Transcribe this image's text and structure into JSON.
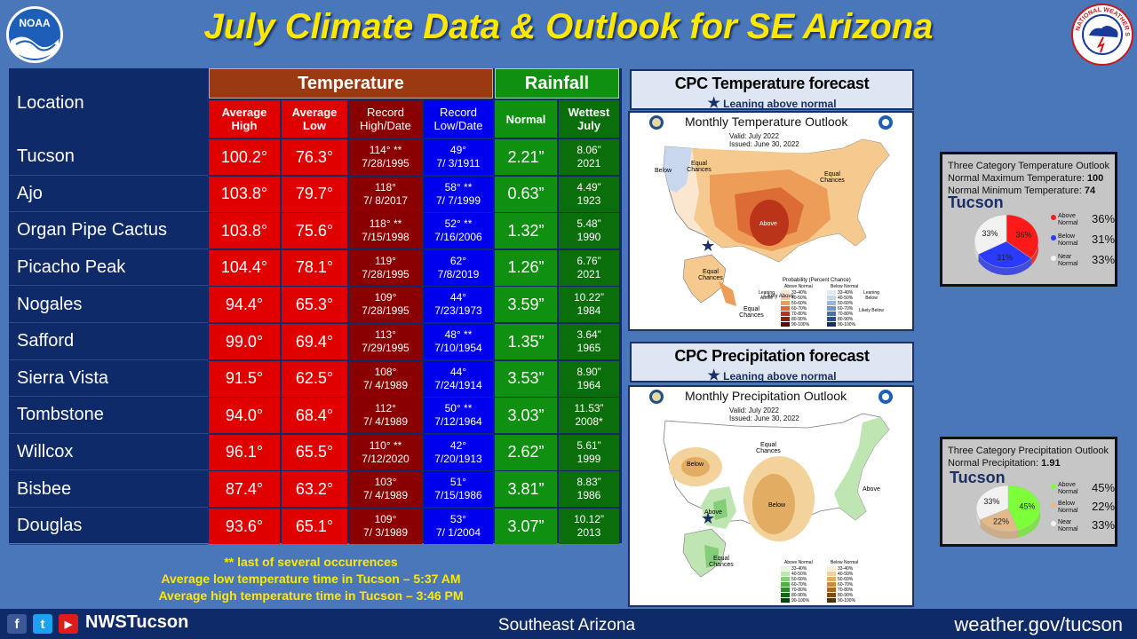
{
  "header": {
    "title": "July Climate Data & Outlook for SE Arizona"
  },
  "logos": {
    "noaa_text": "NOAA",
    "nws_text": "NATIONAL WEATHER SERVICE"
  },
  "table": {
    "location_header": "Location",
    "temperature_header": "Temperature",
    "rainfall_header": "Rainfall",
    "sub_headers": {
      "avg_high": "Average High",
      "avg_low": "Average Low",
      "record_high": "Record High/Date",
      "record_low": "Record Low/Date",
      "normal": "Normal",
      "wettest": "Wettest July"
    },
    "rows": [
      {
        "location": "Tucson",
        "avg_high": "100.2°",
        "avg_low": "76.3°",
        "rec_high": "114° **",
        "rec_high_date": "7/28/1995",
        "rec_low": "49°",
        "rec_low_date": "7/ 3/1911",
        "normal": "2.21”",
        "wettest": "8.06”",
        "wettest_year": "2021"
      },
      {
        "location": "Ajo",
        "avg_high": "103.8°",
        "avg_low": "79.7°",
        "rec_high": "118°",
        "rec_high_date": "7/ 8/2017",
        "rec_low": "58° **",
        "rec_low_date": "7/ 7/1999",
        "normal": "0.63”",
        "wettest": "4.49”",
        "wettest_year": "1923"
      },
      {
        "location": "Organ Pipe Cactus",
        "avg_high": "103.8°",
        "avg_low": "75.6°",
        "rec_high": "118° **",
        "rec_high_date": "7/15/1998",
        "rec_low": "52° **",
        "rec_low_date": "7/16/2006",
        "normal": "1.32”",
        "wettest": "5.48”",
        "wettest_year": "1990"
      },
      {
        "location": "Picacho Peak",
        "avg_high": "104.4°",
        "avg_low": "78.1°",
        "rec_high": "119°",
        "rec_high_date": "7/28/1995",
        "rec_low": "62°",
        "rec_low_date": "7/8/2019",
        "normal": "1.26”",
        "wettest": "6.76”",
        "wettest_year": "2021"
      },
      {
        "location": "Nogales",
        "avg_high": "94.4°",
        "avg_low": "65.3°",
        "rec_high": "109°",
        "rec_high_date": "7/28/1995",
        "rec_low": "44°",
        "rec_low_date": "7/23/1973",
        "normal": "3.59”",
        "wettest": "10.22”",
        "wettest_year": "1984"
      },
      {
        "location": "Safford",
        "avg_high": "99.0°",
        "avg_low": "69.4°",
        "rec_high": "113°",
        "rec_high_date": "7/29/1995",
        "rec_low": "48° **",
        "rec_low_date": "7/10/1954",
        "normal": "1.35”",
        "wettest": "3.64”",
        "wettest_year": "1965"
      },
      {
        "location": "Sierra Vista",
        "avg_high": "91.5°",
        "avg_low": "62.5°",
        "rec_high": "108°",
        "rec_high_date": "7/ 4/1989",
        "rec_low": "44°",
        "rec_low_date": "7/24/1914",
        "normal": "3.53”",
        "wettest": "8.90”",
        "wettest_year": "1964"
      },
      {
        "location": "Tombstone",
        "avg_high": "94.0°",
        "avg_low": "68.4°",
        "rec_high": "112°",
        "rec_high_date": "7/ 4/1989",
        "rec_low": "50° **",
        "rec_low_date": "7/12/1964",
        "normal": "3.03”",
        "wettest": "11.53”",
        "wettest_year": "2008*"
      },
      {
        "location": "Willcox",
        "avg_high": "96.1°",
        "avg_low": "65.5°",
        "rec_high": "110° **",
        "rec_high_date": "7/12/2020",
        "rec_low": "42°",
        "rec_low_date": "7/20/1913",
        "normal": "2.62”",
        "wettest": "5.61”",
        "wettest_year": "1999"
      },
      {
        "location": "Bisbee",
        "avg_high": "87.4°",
        "avg_low": "63.2°",
        "rec_high": "103°",
        "rec_high_date": "7/ 4/1989",
        "rec_low": "51°",
        "rec_low_date": "7/15/1986",
        "normal": "3.81”",
        "wettest": "8.83”",
        "wettest_year": "1986"
      },
      {
        "location": "Douglas",
        "avg_high": "93.6°",
        "avg_low": "65.1°",
        "rec_high": "109°",
        "rec_high_date": "7/ 3/1989",
        "rec_low": "53°",
        "rec_low_date": "7/ 1/2004",
        "normal": "3.07”",
        "wettest": "10.12”",
        "wettest_year": "2013"
      }
    ]
  },
  "footnote": {
    "line1": "** last of several occurrences",
    "line2": "Average low temperature time in Tucson – 5:37 AM",
    "line3": "Average high temperature time in Tucson – 3:46 PM"
  },
  "temp_forecast": {
    "title": "CPC Temperature forecast",
    "subtitle_pre": "Leaning ",
    "subtitle_em": "above",
    "subtitle_post": " normal",
    "map_title": "Monthly Temperature Outlook",
    "valid": "Valid:  July 2022",
    "issued": "Issued:  June 30, 2022",
    "labels": {
      "below": "Below",
      "equal_chances": "Equal Chances",
      "above": "Above",
      "equal2": "Equal Chances",
      "equal3": "Equal Chances",
      "equal4": "Equal Chances",
      "likely_above": "Likely Above"
    },
    "legend_title": "Probability (Percent Chance)",
    "legend_above": "Above Normal",
    "legend_below": "Below Normal",
    "legend_leaning": "Leaning Above",
    "legend_leaning_below": "Leaning Below",
    "legend_likely_below": "Likely Below",
    "legend_pcts": [
      "33-40%",
      "40-50%",
      "50-60%",
      "60-70%",
      "70-80%",
      "80-90%",
      "90-100%"
    ]
  },
  "precip_forecast": {
    "title": "CPC Precipitation forecast",
    "subtitle_pre": "Leaning ",
    "subtitle_em": "above",
    "subtitle_post": " normal",
    "map_title": "Monthly Precipitation Outlook",
    "valid": "Valid:  July 2022",
    "issued": "Issued:  June 30, 2022",
    "labels": {
      "below": "Below",
      "equal_chances": "Equal Chances",
      "above": "Above",
      "below2": "Below",
      "above2": "Above",
      "equal2": "Equal Chances"
    },
    "legend_above": "Above Normal",
    "legend_below": "Below Normal",
    "legend_pcts": [
      "33-40%",
      "40-50%",
      "50-60%",
      "60-70%",
      "70-80%",
      "80-90%",
      "90-100%"
    ]
  },
  "temp_outlook": {
    "title": "Three Category Temperature Outlook",
    "max_label": "Normal Maximum Temperature: ",
    "max_value": "100",
    "min_label": "Normal Minimum Temperature: ",
    "min_value": "74",
    "city": "Tucson",
    "slices": [
      {
        "name": "Above Normal",
        "value": 36,
        "label": "36%",
        "pct": "36%",
        "color": "#ff1a1a"
      },
      {
        "name": "Below Normal",
        "value": 31,
        "label": "31%",
        "pct": "31%",
        "color": "#2a3aff"
      },
      {
        "name": "Near Normal",
        "value": 33,
        "label": "33%",
        "pct": "33%",
        "color": "#f2f2f2"
      }
    ]
  },
  "precip_outlook": {
    "title": "Three Category Precipitation Outlook",
    "normal_label": "Normal Precipitation: ",
    "normal_value": "1.91",
    "city": "Tucson",
    "slices": [
      {
        "name": "Above Normal",
        "value": 45,
        "label": "45%",
        "pct": "45%",
        "color": "#7dff3a"
      },
      {
        "name": "Below Normal",
        "value": 22,
        "label": "22%",
        "pct": "22%",
        "color": "#e3b98a"
      },
      {
        "name": "Near Normal",
        "value": 33,
        "label": "33%",
        "pct": "33%",
        "color": "#f2f2f2"
      }
    ]
  },
  "footer": {
    "handle": "NWSTucson",
    "center": "Southeast Arizona",
    "url": "weather.gov/tucson",
    "social": [
      "f",
      "t",
      "▶"
    ]
  },
  "colors": {
    "background": "#4a77b9",
    "navy": "#0f2a68",
    "title_yellow": "#ffe800",
    "temp_header": "#9b3a12",
    "red": "#e00000",
    "dark_red": "#8a0000",
    "blue": "#0000ee",
    "green": "#109010",
    "dark_green": "#0a6f0a"
  }
}
